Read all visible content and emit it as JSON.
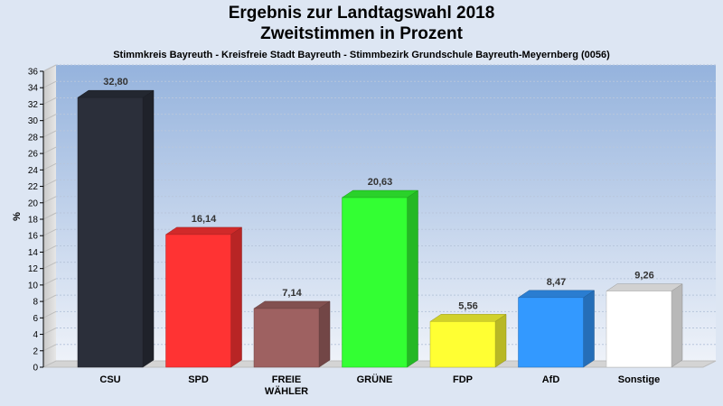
{
  "chart_data": {
    "type": "bar",
    "title": "Ergebnis zur Landtagswahl 2018",
    "subtitle": "Zweitstimmen in Prozent",
    "caption": "Stimmkreis Bayreuth - Kreisfreie Stadt Bayreuth - Stimmbezirk Grundschule Bayreuth-Meyernberg (0056)",
    "ylabel": "%",
    "ylim": [
      0,
      36
    ],
    "yticks": [
      0,
      2,
      4,
      6,
      8,
      10,
      12,
      14,
      16,
      18,
      20,
      22,
      24,
      26,
      28,
      30,
      32,
      34,
      36
    ],
    "grid": true,
    "categories": [
      "CSU",
      "SPD",
      "FREIE WÄHLER",
      "GRÜNE",
      "FDP",
      "AfD",
      "Sonstige"
    ],
    "category_lines": [
      [
        "CSU"
      ],
      [
        "SPD"
      ],
      [
        "FREIE",
        "WÄHLER"
      ],
      [
        "GRÜNE"
      ],
      [
        "FDP"
      ],
      [
        "AfD"
      ],
      [
        "Sonstige"
      ]
    ],
    "values": [
      32.8,
      16.14,
      7.14,
      20.63,
      5.56,
      8.47,
      9.26
    ],
    "value_labels": [
      "32,80",
      "16,14",
      "7,14",
      "20,63",
      "5,56",
      "8,47",
      "9,26"
    ],
    "colors": [
      "#2b2f3a",
      "#ff3333",
      "#9e6161",
      "#33ff33",
      "#ffff33",
      "#3399ff",
      "#ffffff"
    ]
  }
}
